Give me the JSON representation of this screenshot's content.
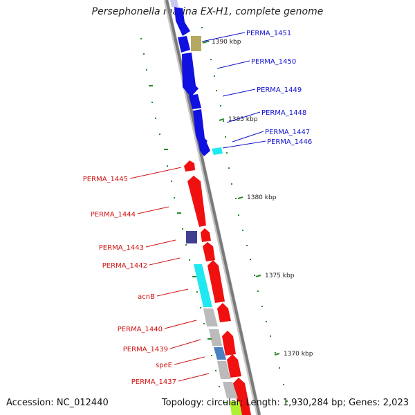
{
  "title": "Persephonella marina EX-H1, complete genome",
  "footer": {
    "accession": "Accession: NC_012440",
    "summary": "Topology: circular; Length: 1,930,284 bp; Genes: 2,023"
  },
  "colors": {
    "backbone": "#7a7a7a",
    "forward_gene": "#1010e0",
    "reverse_gene": "#f01010",
    "forward_label": "#1010d0",
    "reverse_label": "#d01010",
    "tick": "#2a8a2a"
  },
  "scale": {
    "kbp_ticks": [
      {
        "label": "1390 kbp"
      },
      {
        "label": "1385 kbp"
      },
      {
        "label": "1380 kbp"
      },
      {
        "label": "1375 kbp"
      },
      {
        "label": "1370 kbp"
      }
    ]
  },
  "gene_labels": [
    {
      "text": "PERMA_1451",
      "strand": "forward"
    },
    {
      "text": "PERMA_1450",
      "strand": "forward"
    },
    {
      "text": "PERMA_1449",
      "strand": "forward"
    },
    {
      "text": "PERMA_1448",
      "strand": "forward"
    },
    {
      "text": "PERMA_1447",
      "strand": "forward"
    },
    {
      "text": "PERMA_1446",
      "strand": "forward"
    },
    {
      "text": "PERMA_1445",
      "strand": "reverse"
    },
    {
      "text": "PERMA_1444",
      "strand": "reverse"
    },
    {
      "text": "PERMA_1443",
      "strand": "reverse"
    },
    {
      "text": "PERMA_1442",
      "strand": "reverse"
    },
    {
      "text": "acnB",
      "strand": "reverse"
    },
    {
      "text": "PERMA_1440",
      "strand": "reverse"
    },
    {
      "text": "PERMA_1439",
      "strand": "reverse"
    },
    {
      "text": "speE",
      "strand": "reverse"
    },
    {
      "text": "PERMA_1437",
      "strand": "reverse"
    }
  ]
}
